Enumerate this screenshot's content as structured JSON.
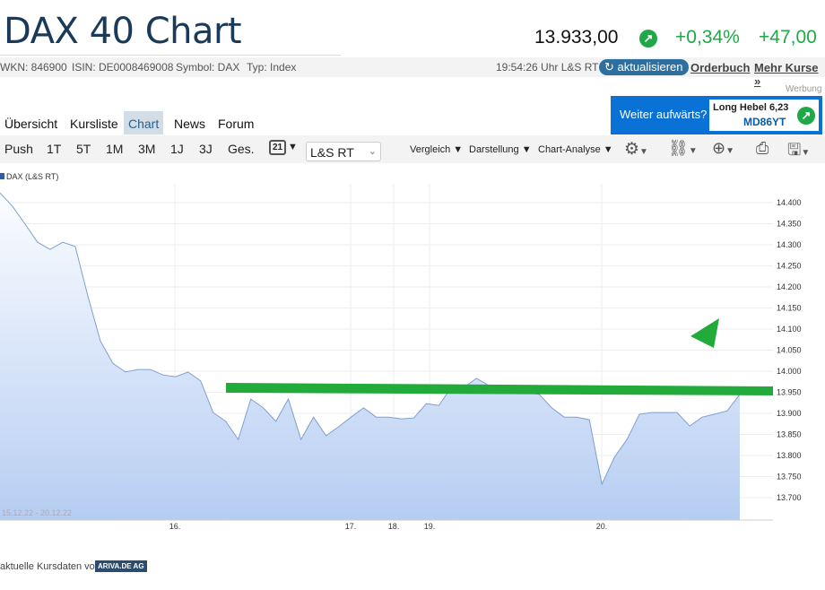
{
  "header": {
    "title": "DAX 40 Chart",
    "price": "13.933,00",
    "change_pct": "+0,34%",
    "change_abs": "+47,00",
    "trend_icon": "arrow-up-right-icon",
    "accent": "#1fa848"
  },
  "info": {
    "wkn": "WKN: 846900",
    "isin": "ISIN: DE0008469008",
    "symbol": "Symbol: DAX",
    "type": "Typ: Index",
    "time": "19:54:26 Uhr L&S RT",
    "refresh": "aktualisieren",
    "orderbuch": "Orderbuch",
    "mehr": "Mehr Kurse »"
  },
  "ad": {
    "label": "Werbung",
    "question": "Weiter aufwärts?",
    "line1": "Long Hebel 6,23",
    "line2": "MD86YT"
  },
  "tabs": [
    {
      "label": "Übersicht"
    },
    {
      "label": "Kursliste"
    },
    {
      "label": "Chart",
      "active": true
    },
    {
      "label": "News"
    },
    {
      "label": "Forum"
    }
  ],
  "toolbar": {
    "ranges": [
      "Push",
      "1T",
      "5T",
      "1M",
      "3M",
      "1J",
      "3J",
      "Ges."
    ],
    "calendar": "21",
    "exchange": "L&S RT",
    "vergleich": "Vergleich ▼",
    "darstellung": "Darstellung ▼",
    "analyse": "Chart-Analyse ▼"
  },
  "chart_data": {
    "type": "area",
    "legend": "DAX (L&S RT)",
    "date_range": "15.12.22 - 20.12.22",
    "x_ticks": [
      "16.",
      "17.",
      "18.",
      "19.",
      "20."
    ],
    "y_ticks": [
      "14.400",
      "14.350",
      "14.300",
      "14.250",
      "14.200",
      "14.150",
      "14.100",
      "14.050",
      "14.000",
      "13.950",
      "13.900",
      "13.850",
      "13.800",
      "13.750",
      "13.700"
    ],
    "ylim": [
      13675,
      14450
    ],
    "grid": true,
    "color": "#7f9fcf",
    "values": [
      14423,
      14391,
      14349,
      14306,
      14289,
      14306,
      14296,
      14179,
      14072,
      14019,
      13998,
      14004,
      14004,
      13991,
      13987,
      13998,
      13977,
      13902,
      13881,
      13838,
      13934,
      13913,
      13881,
      13934,
      13838,
      13891,
      13847,
      13868,
      13891,
      13913,
      13891,
      13891,
      13887,
      13889,
      13923,
      13919,
      13962,
      13962,
      13983,
      13966,
      13962,
      13955,
      13949,
      13945,
      13913,
      13891,
      13891,
      13885,
      13732,
      13796,
      13838,
      13898,
      13902,
      13902,
      13902,
      13870,
      13891,
      13898,
      13906,
      13945
    ],
    "annotations": {
      "line_color": "#22aa3a",
      "line_value": 13955
    }
  },
  "footer": {
    "text": "aktuelle Kursdaten von",
    "logo": "ARIVA.DE AG"
  }
}
